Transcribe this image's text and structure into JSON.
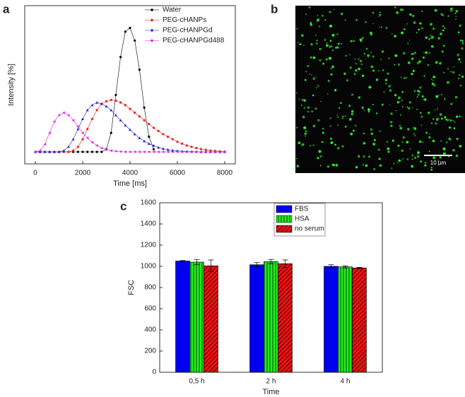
{
  "chart_data": [
    {
      "type": "line",
      "label": "a",
      "x_label": "Time [ms]",
      "y_label": "Intensity [%]",
      "xlim": [
        -450,
        8450
      ],
      "xticks": [
        0,
        2000,
        4000,
        6000,
        8000
      ],
      "ylim": [
        -9.5,
        115.6
      ],
      "legend": "top-right",
      "x": [
        0,
        200,
        400,
        600,
        800,
        1000,
        1200,
        1400,
        1600,
        1800,
        2000,
        2200,
        2400,
        2600,
        2800,
        3000,
        3200,
        3400,
        3600,
        3800,
        4000,
        4200,
        4400,
        4600,
        4800,
        5000,
        5200,
        5400,
        5600,
        5800,
        6000,
        6200,
        6400,
        6600,
        6800,
        7000,
        7200,
        7400,
        7600,
        7800,
        8000
      ],
      "series": [
        {
          "name": "Water",
          "color": "#000000",
          "marker": "circle",
          "values": [
            0,
            0,
            0,
            0,
            0,
            0,
            0,
            0,
            0,
            0,
            0,
            0,
            0,
            0,
            0,
            2,
            15,
            45,
            75,
            95,
            98,
            88,
            65,
            35,
            12,
            2,
            null,
            null,
            null,
            null,
            null,
            null,
            null,
            null,
            null,
            null,
            null,
            null,
            null,
            null,
            null
          ]
        },
        {
          "name": "PEG-cHANPs",
          "color": "#e8211d",
          "marker": "circle",
          "values": [
            0,
            0,
            0,
            0,
            0,
            0,
            0,
            0,
            1,
            4,
            10,
            18,
            26,
            33,
            38,
            40,
            41,
            40.5,
            39,
            37,
            34,
            31,
            28,
            25,
            22,
            19,
            16.5,
            14,
            12,
            10,
            8,
            6.5,
            5,
            4,
            3,
            2.2,
            1.6,
            1,
            0.7,
            0.4,
            0.2
          ]
        },
        {
          "name": "PEG-cHANPGd",
          "color": "#1f24c8",
          "marker": "triangle",
          "values": [
            0,
            0,
            0,
            0,
            0,
            0,
            1,
            4,
            10,
            18,
            26,
            33,
            37,
            39,
            38,
            36,
            33,
            29,
            25,
            21,
            17.5,
            14,
            11,
            8.5,
            6.5,
            5,
            3.5,
            2.5,
            1.8,
            1.2,
            0.8,
            0.5,
            0.3,
            0.2,
            0.1,
            0,
            0,
            0,
            0,
            0,
            0
          ]
        },
        {
          "name": "PEG-cHANPGd488",
          "color": "#e020e0",
          "marker": "triangle-left",
          "values": [
            0,
            1,
            6,
            15,
            24,
            29,
            31,
            29,
            25,
            20,
            15,
            11,
            7.5,
            5,
            3,
            2,
            1,
            0.5,
            0.2,
            0,
            0,
            0,
            0,
            0,
            0,
            0,
            0,
            0,
            0,
            0,
            0,
            0,
            0,
            0,
            0,
            0,
            0,
            0,
            0,
            0,
            0
          ]
        }
      ]
    },
    {
      "type": "bar",
      "label": "c",
      "x_label": "Time",
      "y_label": "FSC",
      "categories": [
        "0,5 h",
        "2 h",
        "4 h"
      ],
      "ylim": [
        0,
        1600
      ],
      "yticks": [
        0,
        200,
        400,
        600,
        800,
        1000,
        1200,
        1400,
        1600
      ],
      "legend": "top-right",
      "series": [
        {
          "name": "FBS",
          "color": "#0000ee",
          "hatch": "none",
          "values": [
            1050,
            1015,
            1000
          ],
          "errors": [
            5,
            20,
            15
          ]
        },
        {
          "name": "HSA",
          "color": "#22ee22",
          "hatch": "vertical",
          "values": [
            1040,
            1045,
            995
          ],
          "errors": [
            25,
            20,
            10
          ]
        },
        {
          "name": "no serum",
          "color": "#ee1111",
          "hatch": "diagonal",
          "values": [
            1005,
            1025,
            985
          ],
          "errors": [
            55,
            35,
            5
          ]
        }
      ]
    }
  ],
  "image": {
    "label": "b",
    "scale_bar": "10 µm"
  }
}
